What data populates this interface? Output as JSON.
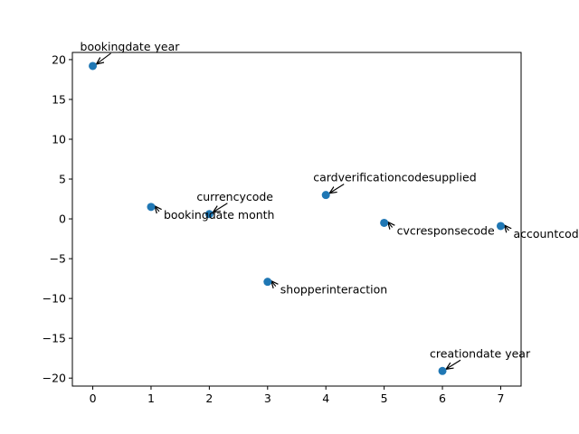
{
  "chart_data": {
    "type": "scatter",
    "title": "",
    "xlabel": "",
    "ylabel": "",
    "xlim": [
      -0.35,
      7.35
    ],
    "ylim": [
      -21.0,
      20.9
    ],
    "x_ticks": [
      0,
      1,
      2,
      3,
      4,
      5,
      6,
      7
    ],
    "y_ticks": [
      -20,
      -15,
      -10,
      -5,
      0,
      5,
      10,
      15,
      20
    ],
    "grid": false,
    "point_color": "#1f77b4",
    "points": [
      {
        "x": 0,
        "y": 19.2,
        "label": "bookingdate year"
      },
      {
        "x": 1,
        "y": 1.5,
        "label": "bookingdate month"
      },
      {
        "x": 2,
        "y": 0.6,
        "label": "currencycode"
      },
      {
        "x": 3,
        "y": -7.9,
        "label": "shopperinteraction"
      },
      {
        "x": 4,
        "y": 3.0,
        "label": "cardverificationcodesupplied"
      },
      {
        "x": 5,
        "y": -0.5,
        "label": "cvcresponsecode"
      },
      {
        "x": 6,
        "y": -19.1,
        "label": "creationdate year"
      },
      {
        "x": 7,
        "y": -0.9,
        "label": "accountcode"
      }
    ]
  }
}
